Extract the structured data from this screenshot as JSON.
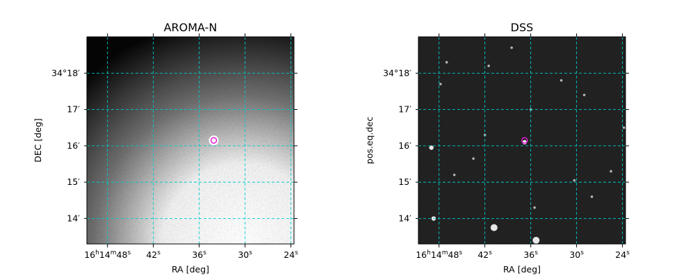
{
  "figure": {
    "panels": [
      {
        "title": "AROMA-N",
        "xlabel": "RA [deg]",
        "ylabel": "DEC [deg]",
        "x_ticks": [
          "16h14m48s",
          "42s",
          "36s",
          "30s",
          "24s"
        ],
        "y_ticks": [
          "34°18′",
          "17′",
          "16′",
          "15′",
          "14′"
        ],
        "image_style": "noisy black-white gradient, bright lower-right, dark upper-left, bright source near center",
        "marker_color": "#e41ad6"
      },
      {
        "title": "DSS",
        "xlabel": "RA [deg]",
        "ylabel": "pos.eq.dec",
        "x_ticks": [
          "16h14m48s",
          "42s",
          "36s",
          "30s",
          "24s"
        ],
        "y_ticks": [
          "34°18′",
          "17′",
          "16′",
          "15′",
          "14′"
        ],
        "image_style": "dark sky with scattered stars",
        "marker_color": "#e41ad6"
      }
    ],
    "grid_color": "#00cccc",
    "grid_style": "dashed"
  },
  "chart_data": [
    {
      "type": "heatmap",
      "title": "AROMA-N",
      "xlabel": "RA [deg]",
      "ylabel": "DEC [deg]",
      "x_ticks": [
        "16h14m48s",
        "42s",
        "36s",
        "30s",
        "24s"
      ],
      "x_tick_seconds": [
        48,
        42,
        36,
        30,
        24
      ],
      "y_ticks": [
        "34°18′",
        "17′",
        "16′",
        "15′",
        "14′"
      ],
      "y_tick_arcmin": [
        18,
        17,
        16,
        15,
        14
      ],
      "xlim_seconds": [
        50.7,
        23.6
      ],
      "ylim_arcmin": [
        13.3,
        19.0
      ],
      "grid": true,
      "marker": {
        "ra_s": 34.1,
        "dec_arcmin": 16.15,
        "shape": "circle",
        "color": "#e41ad6"
      },
      "bright_source": {
        "ra_s": 34.1,
        "dec_arcmin": 16.15
      }
    },
    {
      "type": "heatmap",
      "title": "DSS",
      "xlabel": "RA [deg]",
      "ylabel": "pos.eq.dec",
      "x_ticks": [
        "16h14m48s",
        "42s",
        "36s",
        "30s",
        "24s"
      ],
      "x_tick_seconds": [
        48,
        42,
        36,
        30,
        24
      ],
      "y_ticks": [
        "34°18′",
        "17′",
        "16′",
        "15′",
        "14′"
      ],
      "y_tick_arcmin": [
        18,
        17,
        16,
        15,
        14
      ],
      "xlim_seconds": [
        50.7,
        23.6
      ],
      "ylim_arcmin": [
        13.3,
        19.0
      ],
      "grid": true,
      "marker": {
        "ra_s": 36.8,
        "dec_arcmin": 16.15,
        "shape": "circle",
        "color": "#e41ad6"
      },
      "stars": [
        {
          "ra_s": 49.0,
          "dec_arcmin": 15.95,
          "mag": 2
        },
        {
          "ra_s": 48.7,
          "dec_arcmin": 14.0,
          "mag": 2
        },
        {
          "ra_s": 40.8,
          "dec_arcmin": 13.75,
          "mag": 3
        },
        {
          "ra_s": 35.3,
          "dec_arcmin": 13.4,
          "mag": 3
        },
        {
          "ra_s": 36.8,
          "dec_arcmin": 16.1,
          "mag": 2
        },
        {
          "ra_s": 47.8,
          "dec_arcmin": 17.7,
          "mag": 1
        },
        {
          "ra_s": 47.0,
          "dec_arcmin": 18.3,
          "mag": 1
        },
        {
          "ra_s": 41.5,
          "dec_arcmin": 18.2,
          "mag": 1
        },
        {
          "ra_s": 43.5,
          "dec_arcmin": 15.65,
          "mag": 1
        },
        {
          "ra_s": 42.0,
          "dec_arcmin": 16.3,
          "mag": 1
        },
        {
          "ra_s": 36.0,
          "dec_arcmin": 17.0,
          "mag": 1
        },
        {
          "ra_s": 30.3,
          "dec_arcmin": 15.05,
          "mag": 1
        },
        {
          "ra_s": 25.5,
          "dec_arcmin": 15.3,
          "mag": 1
        },
        {
          "ra_s": 23.8,
          "dec_arcmin": 16.5,
          "mag": 1
        },
        {
          "ra_s": 35.5,
          "dec_arcmin": 14.3,
          "mag": 1
        },
        {
          "ra_s": 29.0,
          "dec_arcmin": 17.4,
          "mag": 1
        },
        {
          "ra_s": 32.0,
          "dec_arcmin": 17.8,
          "mag": 1
        },
        {
          "ra_s": 46.0,
          "dec_arcmin": 15.2,
          "mag": 1
        },
        {
          "ra_s": 28.0,
          "dec_arcmin": 14.6,
          "mag": 1
        },
        {
          "ra_s": 38.5,
          "dec_arcmin": 18.7,
          "mag": 1
        }
      ]
    }
  ]
}
